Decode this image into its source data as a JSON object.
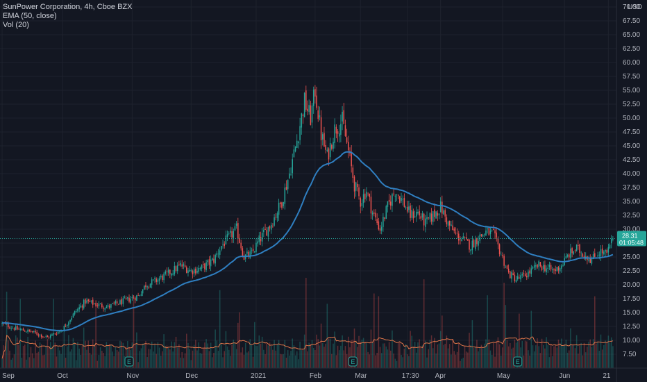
{
  "legend": {
    "symbol_line": "SunPower Corporation, 4h, Cboe BZX",
    "ema_line": "EMA (50, close)",
    "vol_line": "Vol (20)"
  },
  "currency": "USD",
  "price_badge": {
    "price": "28.31",
    "countdown": "01:05:48"
  },
  "earnings_marker": "E",
  "colors": {
    "background": "#131722",
    "grid": "#1e222d",
    "up": "#26a69a",
    "down": "#ef5350",
    "ema": "#2f7fc1",
    "vol_ma": "#e0764a",
    "text": "#b2b5be"
  },
  "chart_data": {
    "type": "candlestick",
    "title": "SunPower Corporation, 4h, Cboe BZX",
    "ylim": [
      5.0,
      70.0
    ],
    "y_ticks": [
      7.5,
      10.0,
      12.5,
      15.0,
      17.5,
      20.0,
      22.5,
      25.0,
      27.5,
      30.0,
      32.5,
      35.0,
      37.5,
      40.0,
      42.5,
      45.0,
      47.5,
      50.0,
      52.5,
      55.0,
      57.5,
      60.0,
      62.5,
      65.0,
      67.5,
      70.0
    ],
    "y_tick_labels": [
      "7.50",
      "10.00",
      "12.50",
      "15.00",
      "17.50",
      "20.00",
      "22.50",
      "25.00",
      "27.50",
      "30.00",
      "32.50",
      "35.00",
      "37.50",
      "40.00",
      "42.50",
      "45.00",
      "47.50",
      "50.00",
      "52.50",
      "55.00",
      "57.50",
      "60.00",
      "62.50",
      "65.00",
      "67.50",
      "70.00"
    ],
    "x_ticks": [
      {
        "label": "Sep",
        "index": 0
      },
      {
        "label": "Oct",
        "index": 40
      },
      {
        "label": "Nov",
        "index": 86
      },
      {
        "label": "Dec",
        "index": 125
      },
      {
        "label": "2021",
        "index": 168
      },
      {
        "label": "Feb",
        "index": 207
      },
      {
        "label": "Mar",
        "index": 237
      },
      {
        "label": "17:30",
        "index": 268
      },
      {
        "label": "Apr",
        "index": 290
      },
      {
        "label": "May",
        "index": 331
      },
      {
        "label": "Jun",
        "index": 372
      },
      {
        "label": "21",
        "index": 401
      }
    ],
    "price_anchors": [
      [
        0,
        13.0
      ],
      [
        10,
        12.0
      ],
      [
        20,
        11.5
      ],
      [
        30,
        10.5
      ],
      [
        40,
        12.0
      ],
      [
        48,
        15.0
      ],
      [
        55,
        17.0
      ],
      [
        62,
        16.5
      ],
      [
        70,
        16.0
      ],
      [
        80,
        17.0
      ],
      [
        90,
        18.0
      ],
      [
        95,
        20.0
      ],
      [
        100,
        20.5
      ],
      [
        110,
        22.0
      ],
      [
        118,
        23.5
      ],
      [
        125,
        22.5
      ],
      [
        132,
        23.0
      ],
      [
        140,
        24.5
      ],
      [
        145,
        27.0
      ],
      [
        150,
        28.5
      ],
      [
        155,
        30.0
      ],
      [
        160,
        25.0
      ],
      [
        165,
        25.5
      ],
      [
        170,
        28.0
      ],
      [
        178,
        31.0
      ],
      [
        185,
        35.0
      ],
      [
        190,
        40.0
      ],
      [
        195,
        46.0
      ],
      [
        200,
        53.0
      ],
      [
        204,
        50.0
      ],
      [
        207,
        55.0
      ],
      [
        211,
        47.0
      ],
      [
        215,
        43.0
      ],
      [
        220,
        48.0
      ],
      [
        225,
        49.5
      ],
      [
        229,
        44.0
      ],
      [
        233,
        38.0
      ],
      [
        237,
        35.0
      ],
      [
        241,
        37.0
      ],
      [
        245,
        33.0
      ],
      [
        250,
        30.0
      ],
      [
        255,
        34.0
      ],
      [
        260,
        37.0
      ],
      [
        265,
        35.0
      ],
      [
        270,
        32.5
      ],
      [
        275,
        33.0
      ],
      [
        280,
        31.0
      ],
      [
        285,
        32.5
      ],
      [
        290,
        34.0
      ],
      [
        295,
        31.0
      ],
      [
        300,
        29.0
      ],
      [
        305,
        28.0
      ],
      [
        310,
        27.0
      ],
      [
        315,
        28.5
      ],
      [
        320,
        29.5
      ],
      [
        325,
        29.0
      ],
      [
        330,
        25.5
      ],
      [
        335,
        22.0
      ],
      [
        340,
        21.0
      ],
      [
        345,
        21.5
      ],
      [
        350,
        22.5
      ],
      [
        355,
        23.5
      ],
      [
        360,
        23.0
      ],
      [
        365,
        22.5
      ],
      [
        370,
        23.5
      ],
      [
        375,
        25.5
      ],
      [
        380,
        26.5
      ],
      [
        385,
        25.5
      ],
      [
        390,
        24.5
      ],
      [
        395,
        26.0
      ],
      [
        400,
        25.5
      ],
      [
        404,
        28.3
      ]
    ],
    "ema_period": 50,
    "last_price": 28.31,
    "earnings_indices": [
      84,
      232,
      341
    ],
    "volume_ma_period": 20
  }
}
